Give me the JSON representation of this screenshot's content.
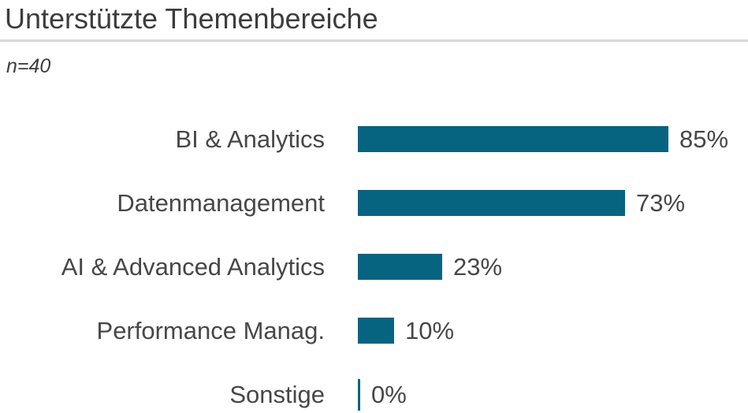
{
  "header": {
    "title": "Unterstützte Themenbereiche",
    "sample_size": "n=40"
  },
  "chart_data": {
    "type": "bar",
    "orientation": "horizontal",
    "title": "Unterstützte Themenbereiche",
    "subtitle": "n=40",
    "categories": [
      "BI & Analytics",
      "Datenmanagement",
      "AI & Advanced Analytics",
      "Performance Manag.",
      "Sonstige"
    ],
    "values": [
      85,
      73,
      23,
      10,
      0
    ],
    "value_labels": [
      "85%",
      "73%",
      "23%",
      "10%",
      "0%"
    ],
    "unit": "%",
    "xlim": [
      0,
      100
    ],
    "grid": false,
    "legend": false,
    "bar_color": "#076480",
    "text_color": "#414141",
    "separator_color": "#d9d9d9",
    "background_color": "#ffffff"
  }
}
